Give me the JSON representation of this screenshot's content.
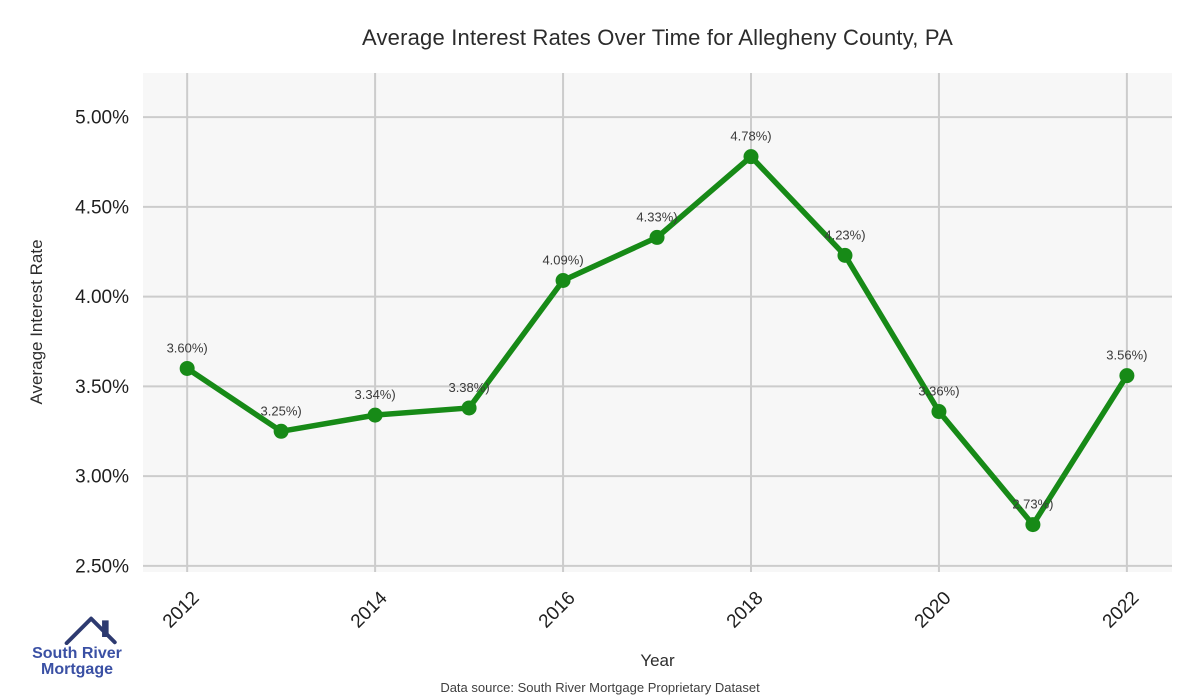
{
  "chart": {
    "title": "Average Interest Rates Over Time for Allegheny County, PA",
    "xlabel": "Year",
    "ylabel": "Average Interest Rate",
    "footer": "Data source: South River Mortgage Proprietary Dataset"
  },
  "chart_data": {
    "type": "line",
    "title": "Average Interest Rates Over Time for Allegheny County, PA",
    "xlabel": "Year",
    "ylabel": "Average Interest Rate",
    "x": [
      2012,
      2013,
      2014,
      2015,
      2016,
      2017,
      2018,
      2019,
      2020,
      2021,
      2022
    ],
    "values": [
      3.6,
      3.25,
      3.34,
      3.38,
      4.09,
      4.33,
      4.78,
      4.23,
      3.36,
      2.73,
      3.56
    ],
    "point_labels": [
      "3.60%)",
      "3.25%)",
      "3.34%)",
      "3.38%)",
      "4.09%)",
      "4.33%)",
      "4.78%)",
      "4.23%)",
      "3.36%)",
      "2.73%)",
      "3.56%)"
    ],
    "x_ticks": [
      {
        "value": 2012,
        "label": "2012"
      },
      {
        "value": 2014,
        "label": "2014"
      },
      {
        "value": 2016,
        "label": "2016"
      },
      {
        "value": 2018,
        "label": "2018"
      },
      {
        "value": 2020,
        "label": "2020"
      },
      {
        "value": 2022,
        "label": "2022"
      }
    ],
    "y_ticks": [
      {
        "value": 5.0,
        "label": "5.00%"
      },
      {
        "value": 4.5,
        "label": "4.50%"
      },
      {
        "value": 4.0,
        "label": "4.00%"
      },
      {
        "value": 3.5,
        "label": "3.50%"
      },
      {
        "value": 3.0,
        "label": "3.00%"
      },
      {
        "value": 2.5,
        "label": "2.50%"
      }
    ],
    "xlim": [
      2011.53,
      2022.48
    ],
    "ylim": [
      2.466,
      5.246
    ],
    "grid": true,
    "legend": "none",
    "colors": {
      "line": "#178a17",
      "panel": "#f7f7f7",
      "grid": "#cccccc",
      "tick": "#1f1f1f",
      "label": "#3a3a3a"
    }
  },
  "logo": {
    "line1": "South River",
    "line2": "Mortgage",
    "icon": "house-roof-icon",
    "icon_color": "#2d3a70",
    "text_color": "#3a50a4"
  }
}
